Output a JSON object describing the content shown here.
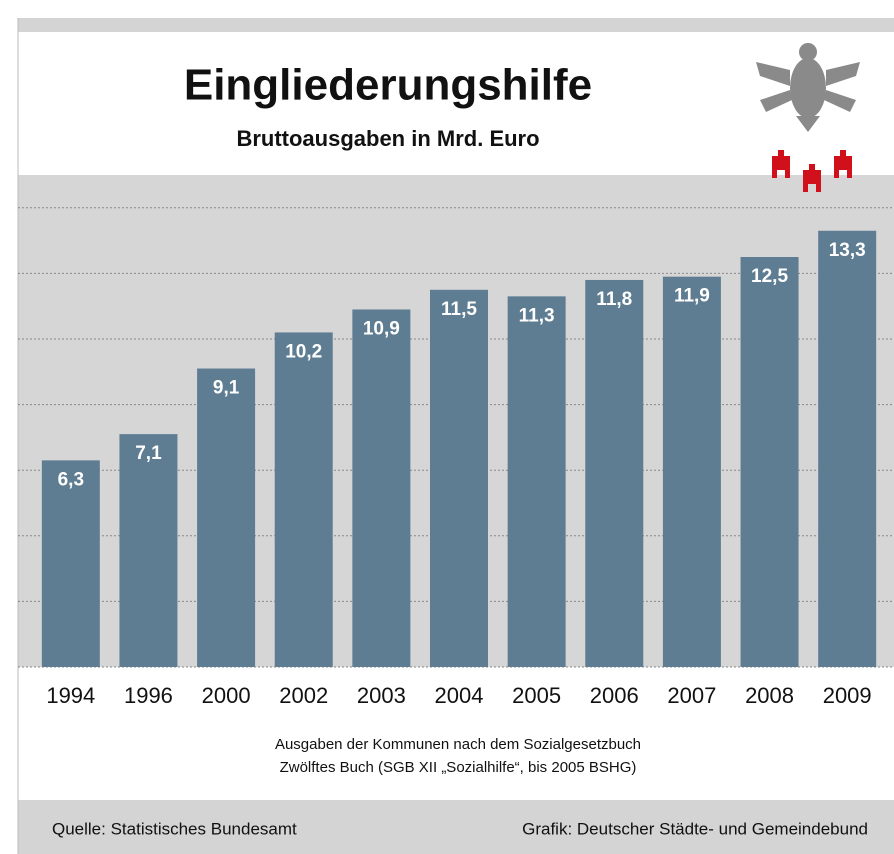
{
  "chart_data": {
    "type": "bar",
    "title": "Eingliederungshilfe",
    "subtitle": "Bruttoausgaben in Mrd. Euro",
    "categories": [
      "1994",
      "1996",
      "2000",
      "2002",
      "2003",
      "2004",
      "2005",
      "2006",
      "2007",
      "2008",
      "2009"
    ],
    "values": [
      6.3,
      7.1,
      9.1,
      10.2,
      10.9,
      11.5,
      11.3,
      11.8,
      11.9,
      12.5,
      13.3
    ],
    "value_labels": [
      "6,3",
      "7,1",
      "9,1",
      "10,2",
      "10,9",
      "11,5",
      "11,3",
      "11,8",
      "11,9",
      "12,5",
      "13,3"
    ],
    "color": "#5f7d92",
    "ylim": [
      0,
      15
    ],
    "yticks": [
      0,
      2,
      4,
      6,
      8,
      10,
      12,
      14
    ],
    "grid": true,
    "note": [
      "Ausgaben der Kommunen nach dem Sozialgesetzbuch",
      "Zwölftes Buch (SGB XII „Sozialhilfe“, bis 2005 BSHG)"
    ],
    "source": "Quelle: Statistisches Bundesamt",
    "credit": "Grafik: Deutscher Städte- und Gemeindebund"
  }
}
